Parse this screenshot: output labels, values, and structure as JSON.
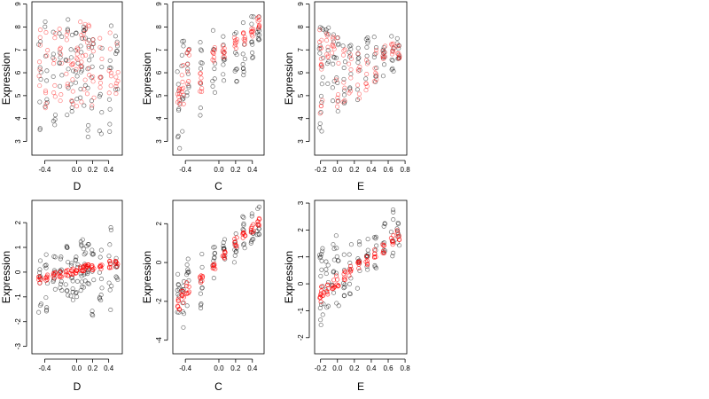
{
  "figure": {
    "background": "#ffffff"
  },
  "colors": {
    "black_points": "#000000",
    "red_points": "#ff0000",
    "axis": "#000000"
  },
  "chart_data": [
    {
      "type": "scatter",
      "ylabel": "Expression",
      "xlabel": "D",
      "xlim": [
        -0.56,
        0.57
      ],
      "ylim": [
        2.4,
        9.1
      ],
      "xticks": [
        -0.4,
        0.0,
        0.2,
        0.4
      ],
      "xtick_labels": [
        "-0.4",
        "0.0",
        "0.2",
        "0.4"
      ],
      "yticks": [
        3,
        4,
        5,
        6,
        7,
        8,
        9
      ],
      "ytick_labels": [
        "3",
        "4",
        "5",
        "6",
        "7",
        "8",
        "9"
      ],
      "x_groups": [
        -0.46,
        -0.38,
        -0.28,
        -0.2,
        -0.12,
        -0.06,
        0.0,
        0.06,
        0.1,
        0.14,
        0.2,
        0.3,
        0.42,
        0.5
      ],
      "series": [
        {
          "color": "#000000",
          "opacity": 0.55,
          "ranges": [
            [
              3.2,
              7.6
            ],
            [
              3.6,
              8.4
            ],
            [
              3.4,
              8.2
            ],
            [
              3.8,
              8.0
            ],
            [
              4.0,
              8.6
            ],
            [
              4.2,
              8.3
            ],
            [
              3.9,
              8.6
            ],
            [
              4.4,
              8.8
            ],
            [
              3.5,
              8.2
            ],
            [
              3.0,
              8.7
            ],
            [
              2.8,
              8.4
            ],
            [
              3.2,
              7.6
            ],
            [
              2.9,
              8.2
            ],
            [
              5.0,
              7.8
            ]
          ],
          "points_per_group": 8
        },
        {
          "color": "#ff0000",
          "opacity": 0.5,
          "ranges": [
            [
              4.2,
              8.0
            ],
            [
              4.0,
              7.9
            ],
            [
              4.4,
              8.1
            ],
            [
              4.5,
              8.2
            ],
            [
              4.6,
              8.2
            ],
            [
              4.5,
              8.1
            ],
            [
              4.4,
              8.0
            ],
            [
              4.6,
              8.3
            ],
            [
              4.5,
              8.2
            ],
            [
              4.4,
              8.1
            ],
            [
              4.5,
              8.2
            ],
            [
              4.7,
              8.0
            ],
            [
              4.8,
              7.9
            ],
            [
              5.0,
              7.8
            ]
          ],
          "points_per_group": 7
        }
      ]
    },
    {
      "type": "scatter",
      "ylabel": "Expression",
      "xlabel": "C",
      "xlim": [
        -0.55,
        0.54
      ],
      "ylim": [
        2.4,
        9.1
      ],
      "xticks": [
        -0.4,
        0.0,
        0.2,
        0.4
      ],
      "xtick_labels": [
        "-0.4",
        "0.0",
        "0.2",
        "0.4"
      ],
      "yticks": [
        3,
        4,
        5,
        6,
        7,
        8,
        9
      ],
      "ytick_labels": [
        "3",
        "4",
        "5",
        "6",
        "7",
        "8",
        "9"
      ],
      "x_groups": [
        -0.48,
        -0.43,
        -0.37,
        -0.21,
        -0.06,
        0.06,
        0.2,
        0.3,
        0.4,
        0.47
      ],
      "series": [
        {
          "color": "#000000",
          "opacity": 0.55,
          "ranges": [
            [
              2.6,
              6.6
            ],
            [
              3.4,
              7.4
            ],
            [
              3.6,
              7.6
            ],
            [
              3.8,
              7.8
            ],
            [
              5.0,
              8.0
            ],
            [
              5.4,
              8.0
            ],
            [
              5.6,
              8.1
            ],
            [
              5.8,
              8.3
            ],
            [
              6.4,
              8.5
            ],
            [
              6.8,
              8.7
            ]
          ],
          "points_per_group": 9
        },
        {
          "color": "#ff0000",
          "opacity": 0.55,
          "ranges": [
            [
              4.2,
              5.6
            ],
            [
              4.6,
              6.4
            ],
            [
              5.2,
              7.0
            ],
            [
              4.8,
              6.0
            ],
            [
              6.4,
              7.2
            ],
            [
              6.6,
              7.2
            ],
            [
              7.0,
              7.6
            ],
            [
              7.2,
              7.8
            ],
            [
              7.5,
              8.0
            ],
            [
              7.9,
              8.5
            ]
          ],
          "points_per_group": 8
        }
      ]
    },
    {
      "type": "scatter",
      "ylabel": "Expression",
      "xlabel": "E",
      "xlim": [
        -0.27,
        0.82
      ],
      "ylim": [
        2.4,
        9.1
      ],
      "xticks": [
        -0.2,
        0.0,
        0.2,
        0.4,
        0.6,
        0.8
      ],
      "xtick_labels": [
        "-0.2",
        "0.0",
        "0.2",
        "0.4",
        "0.6",
        "0.8"
      ],
      "yticks": [
        3,
        4,
        5,
        6,
        7,
        8,
        9
      ],
      "ytick_labels": [
        "3",
        "4",
        "5",
        "6",
        "7",
        "8",
        "9"
      ],
      "x_groups": [
        -0.2,
        -0.18,
        -0.12,
        -0.05,
        0.0,
        0.08,
        0.15,
        0.25,
        0.35,
        0.45,
        0.55,
        0.65,
        0.72
      ],
      "series": [
        {
          "color": "#000000",
          "opacity": 0.55,
          "ranges": [
            [
              2.6,
              8.6
            ],
            [
              3.4,
              8.2
            ],
            [
              5.0,
              8.0
            ],
            [
              4.0,
              7.8
            ],
            [
              3.8,
              7.6
            ],
            [
              4.4,
              7.4
            ],
            [
              4.2,
              7.4
            ],
            [
              4.6,
              7.4
            ],
            [
              5.2,
              7.6
            ],
            [
              5.6,
              7.8
            ],
            [
              5.8,
              8.0
            ],
            [
              6.0,
              7.8
            ],
            [
              6.6,
              7.6
            ]
          ],
          "points_per_group": 8
        },
        {
          "color": "#ff0000",
          "opacity": 0.5,
          "ranges": [
            [
              4.0,
              8.6
            ],
            [
              4.5,
              8.0
            ],
            [
              6.6,
              7.8
            ],
            [
              6.8,
              7.6
            ],
            [
              4.0,
              7.6
            ],
            [
              4.2,
              7.2
            ],
            [
              4.6,
              7.2
            ],
            [
              4.8,
              7.0
            ],
            [
              5.2,
              7.0
            ],
            [
              5.6,
              7.0
            ],
            [
              6.0,
              7.2
            ],
            [
              6.4,
              7.3
            ],
            [
              6.6,
              7.2
            ]
          ],
          "points_per_group": 7
        }
      ]
    },
    {
      "type": "scatter",
      "ylabel": "Expression",
      "xlabel": "D",
      "xlim": [
        -0.56,
        0.57
      ],
      "ylim": [
        -3.3,
        2.9
      ],
      "xticks": [
        -0.4,
        0.0,
        0.2,
        0.4
      ],
      "xtick_labels": [
        "-0.4",
        "0.0",
        "0.2",
        "0.4"
      ],
      "yticks": [
        -3,
        -2,
        -1,
        0,
        1,
        2
      ],
      "ytick_labels": [
        "-3",
        "-2",
        "-1",
        "0",
        "1",
        "2"
      ],
      "x_groups": [
        -0.46,
        -0.38,
        -0.28,
        -0.2,
        -0.12,
        -0.06,
        0.0,
        0.06,
        0.1,
        0.14,
        0.2,
        0.3,
        0.42,
        0.5
      ],
      "series": [
        {
          "color": "#000000",
          "opacity": 0.55,
          "ranges": [
            [
              -2.0,
              1.4
            ],
            [
              -1.6,
              1.2
            ],
            [
              -1.4,
              0.8
            ],
            [
              -1.2,
              1.0
            ],
            [
              -1.0,
              1.2
            ],
            [
              -1.2,
              1.0
            ],
            [
              -1.0,
              1.2
            ],
            [
              -1.4,
              1.4
            ],
            [
              -1.0,
              1.2
            ],
            [
              -0.8,
              1.2
            ],
            [
              -2.0,
              1.0
            ],
            [
              -1.2,
              1.0
            ],
            [
              -1.6,
              2.0
            ],
            [
              -0.4,
              0.8
            ]
          ],
          "points_per_group": 9
        },
        {
          "color": "#ff0000",
          "opacity": 0.75,
          "ranges": [
            [
              -0.55,
              -0.15
            ],
            [
              -0.4,
              -0.05
            ],
            [
              -0.3,
              0.0
            ],
            [
              -0.2,
              0.05
            ],
            [
              -0.15,
              0.1
            ],
            [
              -0.1,
              0.15
            ],
            [
              -0.05,
              0.2
            ],
            [
              0.0,
              0.25
            ],
            [
              0.0,
              0.3
            ],
            [
              0.05,
              0.3
            ],
            [
              0.05,
              0.35
            ],
            [
              0.1,
              0.4
            ],
            [
              0.15,
              0.45
            ],
            [
              0.2,
              0.5
            ]
          ],
          "points_per_group": 6
        }
      ]
    },
    {
      "type": "scatter",
      "ylabel": "Expression",
      "xlabel": "C",
      "xlim": [
        -0.55,
        0.54
      ],
      "ylim": [
        -4.7,
        3.2
      ],
      "xticks": [
        -0.4,
        0.0,
        0.2,
        0.4
      ],
      "xtick_labels": [
        "-0.4",
        "0.0",
        "0.2",
        "0.4"
      ],
      "yticks": [
        -4,
        -2,
        0,
        2
      ],
      "ytick_labels": [
        "-4",
        "-2",
        "0",
        "2"
      ],
      "x_groups": [
        -0.48,
        -0.43,
        -0.37,
        -0.21,
        -0.06,
        0.06,
        0.2,
        0.3,
        0.4,
        0.47
      ],
      "series": [
        {
          "color": "#000000",
          "opacity": 0.55,
          "ranges": [
            [
              -4.4,
              -0.6
            ],
            [
              -3.8,
              -0.4
            ],
            [
              -3.0,
              0.2
            ],
            [
              -2.4,
              0.6
            ],
            [
              -1.0,
              0.8
            ],
            [
              -0.4,
              1.6
            ],
            [
              0.0,
              2.0
            ],
            [
              0.4,
              2.4
            ],
            [
              0.8,
              2.6
            ],
            [
              1.2,
              2.9
            ]
          ],
          "points_per_group": 9
        },
        {
          "color": "#ff0000",
          "opacity": 0.75,
          "ranges": [
            [
              -2.5,
              -1.8
            ],
            [
              -2.1,
              -1.4
            ],
            [
              -1.7,
              -1.0
            ],
            [
              -1.2,
              -0.6
            ],
            [
              -0.4,
              0.0
            ],
            [
              0.2,
              0.6
            ],
            [
              0.8,
              1.3
            ],
            [
              1.2,
              1.6
            ],
            [
              1.5,
              2.0
            ],
            [
              1.9,
              2.4
            ]
          ],
          "points_per_group": 7
        }
      ]
    },
    {
      "type": "scatter",
      "ylabel": "Expression",
      "xlabel": "E",
      "xlim": [
        -0.27,
        0.82
      ],
      "ylim": [
        -2.6,
        3.1
      ],
      "xticks": [
        -0.2,
        0.0,
        0.2,
        0.4,
        0.6,
        0.8
      ],
      "xtick_labels": [
        "-0.2",
        "0.0",
        "0.2",
        "0.4",
        "0.6",
        "0.8"
      ],
      "yticks": [
        -2,
        -1,
        0,
        1,
        2,
        3
      ],
      "ytick_labels": [
        "-2",
        "-1",
        "0",
        "1",
        "2",
        "3"
      ],
      "x_groups": [
        -0.2,
        -0.18,
        -0.12,
        -0.05,
        0.0,
        0.08,
        0.15,
        0.25,
        0.35,
        0.45,
        0.55,
        0.65,
        0.72
      ],
      "series": [
        {
          "color": "#000000",
          "opacity": 0.55,
          "ranges": [
            [
              -2.2,
              1.2
            ],
            [
              -1.6,
              1.4
            ],
            [
              -1.2,
              1.6
            ],
            [
              -1.0,
              1.6
            ],
            [
              -1.0,
              2.8
            ],
            [
              -0.6,
              1.4
            ],
            [
              -0.4,
              1.6
            ],
            [
              -0.2,
              1.6
            ],
            [
              0.2,
              1.8
            ],
            [
              0.4,
              2.0
            ],
            [
              0.8,
              2.4
            ],
            [
              1.0,
              2.8
            ],
            [
              1.4,
              2.6
            ]
          ],
          "points_per_group": 8
        },
        {
          "color": "#ff0000",
          "opacity": 0.75,
          "ranges": [
            [
              -0.7,
              -0.3
            ],
            [
              -0.5,
              -0.1
            ],
            [
              -0.4,
              0.0
            ],
            [
              -0.2,
              0.2
            ],
            [
              -0.1,
              0.3
            ],
            [
              0.1,
              0.5
            ],
            [
              0.3,
              0.7
            ],
            [
              0.5,
              0.9
            ],
            [
              0.7,
              1.1
            ],
            [
              0.9,
              1.3
            ],
            [
              1.1,
              1.5
            ],
            [
              1.4,
              1.8
            ],
            [
              1.6,
              2.0
            ]
          ],
          "points_per_group": 6
        }
      ]
    }
  ]
}
